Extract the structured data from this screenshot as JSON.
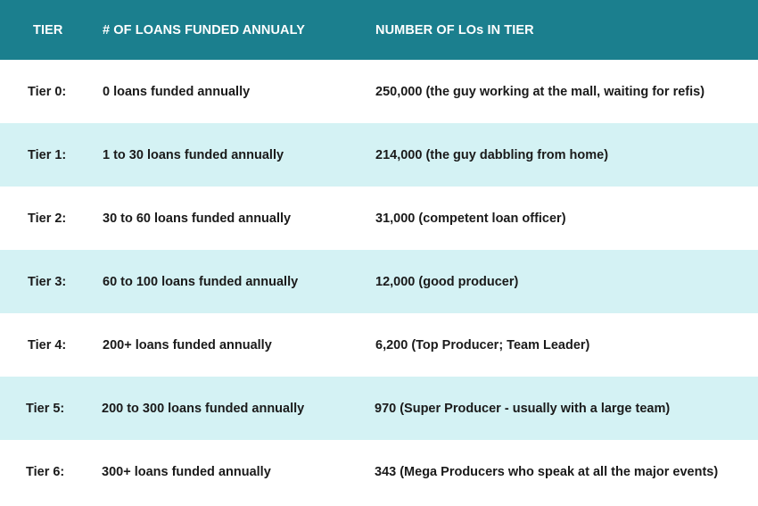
{
  "colors": {
    "header_bg": "#1b7f8e",
    "header_text": "#ffffff",
    "alt_row_bg": "#d4f2f4",
    "row_bg": "#ffffff",
    "body_text": "#1a1a1a"
  },
  "table": {
    "headers": [
      "TIER",
      "# OF LOANS FUNDED ANNUALY",
      "NUMBER OF LOs IN TIER"
    ],
    "rows": [
      {
        "tier": "Tier 0:",
        "loans": "0 loans funded annually",
        "count": "250,000 (the guy working at the mall, waiting for refis)"
      },
      {
        "tier": "Tier 1:",
        "loans": "1 to 30 loans funded annually",
        "count": "214,000 (the guy dabbling from home)"
      },
      {
        "tier": "Tier 2:",
        "loans": "30 to 60 loans funded annually",
        "count": "31,000 (competent loan officer)"
      },
      {
        "tier": "Tier 3:",
        "loans": "60 to 100 loans funded annually",
        "count": "12,000 (good producer)"
      },
      {
        "tier": "Tier 4:",
        "loans": "200+ loans funded annually",
        "count": "6,200 (Top Producer; Team Leader)"
      },
      {
        "tier": "Tier 5:",
        "loans": "200 to 300 loans funded annually",
        "count": "970 (Super Producer - usually with a large team)"
      },
      {
        "tier": "Tier 6:",
        "loans": "300+ loans funded annually",
        "count": "343 (Mega Producers who speak at all the major events)"
      }
    ]
  }
}
